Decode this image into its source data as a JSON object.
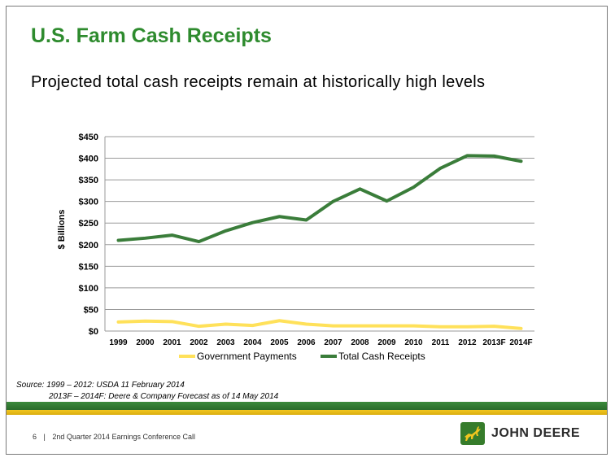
{
  "slide": {
    "title": "U.S. Farm Cash Receipts",
    "subtitle": "Projected total cash receipts remain at historically high levels",
    "source_line1": "Source: 1999 – 2012: USDA 11 February 2014",
    "source_line2": "2013F – 2014F: Deere & Company Forecast as of 14 May 2014",
    "footer_page": "6",
    "footer_sep": "|",
    "footer_text": "2nd Quarter 2014 Earnings Conference Call",
    "logo_text": "JOHN DEERE"
  },
  "colors": {
    "title_green": "#2e8b2e",
    "total_series": "#3a7d3a",
    "gov_series": "#ffe15a",
    "band_green": "#3c8a3c",
    "band_yellow": "#f2c61f"
  },
  "chart_data": {
    "type": "line",
    "ylabel": "$ Billions",
    "ylim": [
      0,
      450
    ],
    "yticks": [
      0,
      50,
      100,
      150,
      200,
      250,
      300,
      350,
      400,
      450
    ],
    "ytick_labels": [
      "$0",
      "$50",
      "$100",
      "$150",
      "$200",
      "$250",
      "$300",
      "$350",
      "$400",
      "$450"
    ],
    "grid": true,
    "legend_position": "bottom",
    "categories": [
      "1999",
      "2000",
      "2001",
      "2002",
      "2003",
      "2004",
      "2005",
      "2006",
      "2007",
      "2008",
      "2009",
      "2010",
      "2011",
      "2012",
      "2013F",
      "2014F"
    ],
    "series": [
      {
        "name": "Government Payments",
        "color": "#ffe15a",
        "values": [
          21,
          23,
          22,
          11,
          16,
          13,
          24,
          16,
          12,
          12,
          12,
          12,
          10,
          10,
          11,
          6
        ]
      },
      {
        "name": "Total Cash Receipts",
        "color": "#3a7d3a",
        "values": [
          210,
          215,
          222,
          207,
          232,
          251,
          265,
          257,
          300,
          329,
          301,
          333,
          377,
          406,
          405,
          393
        ]
      }
    ]
  }
}
